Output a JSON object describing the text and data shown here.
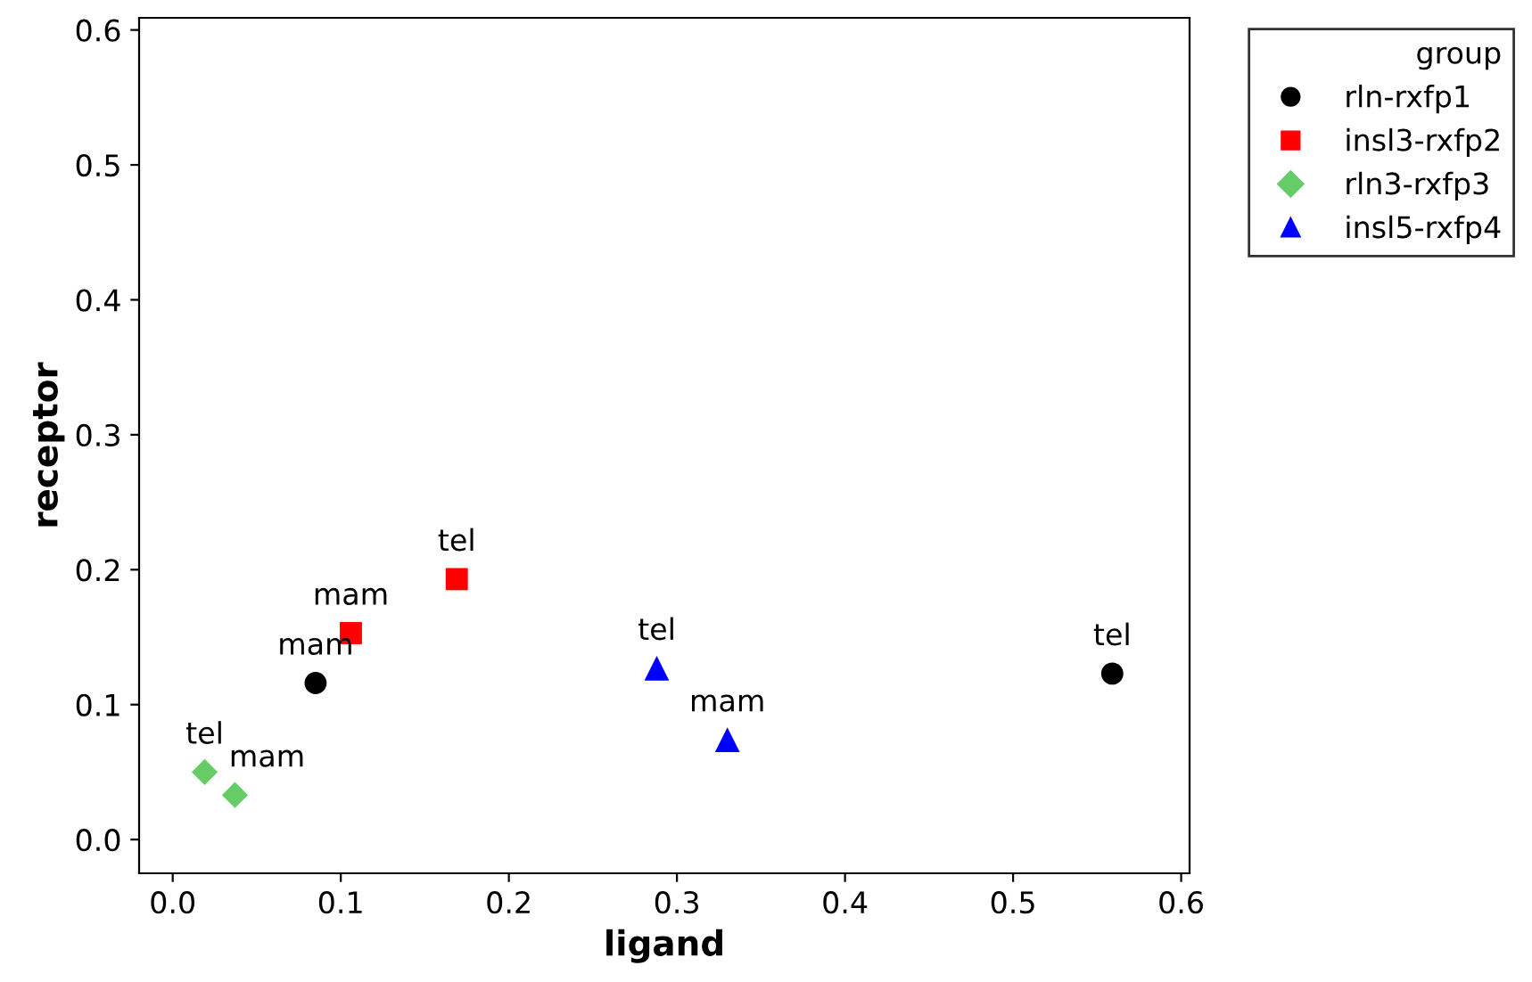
{
  "chart_data": {
    "type": "scatter",
    "xlabel": "ligand",
    "ylabel": "receptor",
    "legend_title": "group",
    "legend": "top right",
    "grid": false,
    "xlim": [
      -0.02,
      0.605
    ],
    "ylim": [
      -0.025,
      0.609
    ],
    "xticks": [
      {
        "value": 0,
        "label": "0.0"
      },
      0.1,
      0.2,
      0.3,
      0.4,
      0.5,
      0.6
    ],
    "yticks": [
      {
        "value": 0,
        "label": "0.0"
      },
      0.1,
      0.2,
      0.3,
      0.4,
      0.5,
      0.6
    ],
    "series": [
      {
        "name": "rln-rxfp1",
        "color": "#000000",
        "marker": "circle",
        "x": [
          0.085,
          0.559
        ],
        "values": [
          0.116,
          0.123
        ]
      },
      {
        "name": "insl3-rxfp2",
        "color": "#ff0000",
        "marker": "square",
        "x": [
          0.106,
          0.169
        ],
        "values": [
          0.153,
          0.193
        ]
      },
      {
        "name": "rln3-rxfp3",
        "color": "#66cc66",
        "marker": "diamond",
        "x": [
          0.019,
          0.037
        ],
        "values": [
          0.05,
          0.033
        ]
      },
      {
        "name": "insl5-rxfp4",
        "color": "#0000ff",
        "marker": "triangle",
        "x": [
          0.288,
          0.33
        ],
        "values": [
          0.127,
          0.074
        ]
      }
    ],
    "annotations": [
      {
        "text": "mam",
        "x": 0.085,
        "y": 0.116
      },
      {
        "text": "tel",
        "x": 0.559,
        "y": 0.123
      },
      {
        "text": "mam",
        "x": 0.106,
        "y": 0.153
      },
      {
        "text": "tel",
        "x": 0.169,
        "y": 0.193
      },
      {
        "text": "tel",
        "x": 0.019,
        "y": 0.05
      },
      {
        "text": "mam",
        "x": 0.037,
        "y": 0.033
      },
      {
        "text": "tel",
        "x": 0.288,
        "y": 0.127
      },
      {
        "text": "mam",
        "x": 0.33,
        "y": 0.074
      }
    ]
  }
}
